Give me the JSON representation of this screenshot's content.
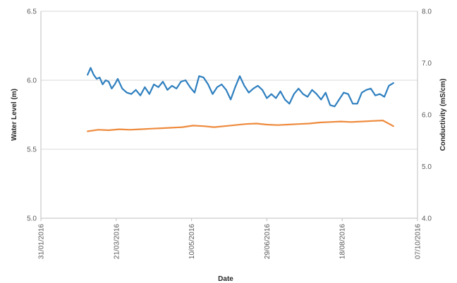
{
  "chart_data": {
    "type": "line",
    "title": "",
    "xlabel": "Date",
    "ylabel_left": "Water Level (m)",
    "ylabel_right": "Conductivity (mS/cm)",
    "x_axis": {
      "type": "date",
      "range": [
        "2016-01-31",
        "2016-10-07"
      ],
      "tick_labels": [
        "31/01/2016",
        "21/03/2016",
        "10/05/2016",
        "29/06/2016",
        "18/08/2016",
        "07/10/2016"
      ]
    },
    "y_left": {
      "range": [
        5.0,
        6.5
      ],
      "tick_labels": [
        "5.0",
        "5.5",
        "6.0",
        "6.5"
      ]
    },
    "y_right": {
      "range": [
        4.0,
        8.0
      ],
      "tick_labels": [
        "4.0",
        "5.0",
        "6.0",
        "7.0",
        "8.0"
      ]
    },
    "grid": "horizontal",
    "legend": "none",
    "colors": {
      "water_level": "#2e7fbf",
      "conductivity": "#ee8a3c"
    },
    "series": [
      {
        "axis": "left",
        "x": [
          "2016-03-02",
          "2016-03-04",
          "2016-03-06",
          "2016-03-08",
          "2016-03-10",
          "2016-03-12",
          "2016-03-14",
          "2016-03-16",
          "2016-03-18",
          "2016-03-20",
          "2016-03-22",
          "2016-03-25",
          "2016-03-28",
          "2016-03-31",
          "2016-04-03",
          "2016-04-06",
          "2016-04-09",
          "2016-04-12",
          "2016-04-15",
          "2016-04-18",
          "2016-04-21",
          "2016-04-24",
          "2016-04-27",
          "2016-04-30",
          "2016-05-03",
          "2016-05-06",
          "2016-05-09",
          "2016-05-12",
          "2016-05-15",
          "2016-05-18",
          "2016-05-21",
          "2016-05-24",
          "2016-05-27",
          "2016-05-30",
          "2016-06-02",
          "2016-06-05",
          "2016-06-08",
          "2016-06-11",
          "2016-06-14",
          "2016-06-17",
          "2016-06-20",
          "2016-06-23",
          "2016-06-26",
          "2016-06-29",
          "2016-07-02",
          "2016-07-05",
          "2016-07-08",
          "2016-07-11",
          "2016-07-14",
          "2016-07-17",
          "2016-07-20",
          "2016-07-23",
          "2016-07-26",
          "2016-07-29",
          "2016-08-01",
          "2016-08-04",
          "2016-08-07",
          "2016-08-10",
          "2016-08-13",
          "2016-08-16",
          "2016-08-19",
          "2016-08-22",
          "2016-08-25",
          "2016-08-28",
          "2016-08-31",
          "2016-09-03",
          "2016-09-06",
          "2016-09-09",
          "2016-09-12",
          "2016-09-15",
          "2016-09-18",
          "2016-09-21"
        ],
        "values": [
          6.04,
          6.09,
          6.04,
          6.01,
          6.02,
          5.97,
          6.0,
          5.99,
          5.94,
          5.97,
          6.01,
          5.94,
          5.91,
          5.9,
          5.93,
          5.89,
          5.95,
          5.9,
          5.97,
          5.95,
          5.99,
          5.93,
          5.96,
          5.94,
          5.99,
          6.0,
          5.95,
          5.91,
          6.03,
          6.02,
          5.97,
          5.9,
          5.95,
          5.97,
          5.93,
          5.86,
          5.95,
          6.03,
          5.96,
          5.91,
          5.94,
          5.96,
          5.93,
          5.87,
          5.9,
          5.87,
          5.92,
          5.86,
          5.83,
          5.9,
          5.94,
          5.9,
          5.88,
          5.93,
          5.9,
          5.86,
          5.91,
          5.82,
          5.81,
          5.86,
          5.91,
          5.9,
          5.83,
          5.83,
          5.91,
          5.93,
          5.94,
          5.89,
          5.9,
          5.88,
          5.96,
          5.98
        ]
      },
      {
        "axis": "right",
        "x": [
          "2016-03-02",
          "2016-03-09",
          "2016-03-16",
          "2016-03-23",
          "2016-03-30",
          "2016-04-06",
          "2016-04-13",
          "2016-04-20",
          "2016-04-27",
          "2016-05-04",
          "2016-05-11",
          "2016-05-18",
          "2016-05-25",
          "2016-06-01",
          "2016-06-08",
          "2016-06-15",
          "2016-06-22",
          "2016-06-29",
          "2016-07-06",
          "2016-07-13",
          "2016-07-20",
          "2016-07-27",
          "2016-08-03",
          "2016-08-10",
          "2016-08-17",
          "2016-08-24",
          "2016-08-31",
          "2016-09-07",
          "2016-09-14",
          "2016-09-21"
        ],
        "values": [
          5.68,
          5.71,
          5.7,
          5.72,
          5.71,
          5.72,
          5.73,
          5.74,
          5.75,
          5.76,
          5.79,
          5.78,
          5.76,
          5.78,
          5.8,
          5.82,
          5.83,
          5.81,
          5.8,
          5.81,
          5.82,
          5.83,
          5.85,
          5.86,
          5.87,
          5.86,
          5.87,
          5.88,
          5.89,
          5.78
        ]
      }
    ]
  }
}
